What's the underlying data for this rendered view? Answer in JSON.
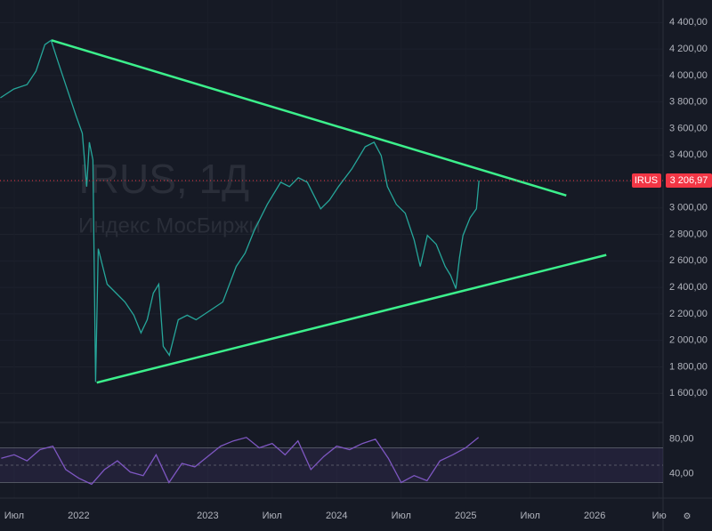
{
  "chart_data": [
    {
      "type": "line",
      "title": "IRUS, 1Д",
      "subtitle": "Индекс МосБиржи",
      "x": [
        2021.393,
        2021.497,
        2021.6,
        2021.669,
        2021.738,
        2021.786,
        2021.841,
        2021.91,
        2021.979,
        2022.028,
        2022.062,
        2022.083,
        2022.11,
        2022.131,
        2022.152,
        2022.221,
        2022.29,
        2022.359,
        2022.428,
        2022.483,
        2022.531,
        2022.579,
        2022.621,
        2022.655,
        2022.703,
        2022.772,
        2022.841,
        2022.91,
        2023.014,
        2023.117,
        2023.221,
        2023.29,
        2023.359,
        2023.462,
        2023.566,
        2023.634,
        2023.703,
        2023.772,
        2023.876,
        2023.945,
        2024.014,
        2024.117,
        2024.221,
        2024.29,
        2024.345,
        2024.393,
        2024.462,
        2024.531,
        2024.6,
        2024.648,
        2024.703,
        2024.772,
        2024.841,
        2024.883,
        2024.924,
        2024.952,
        2024.979,
        2025.034,
        2025.083,
        2025.103
      ],
      "series": [
        {
          "name": "IRUS",
          "color": "#26a69a",
          "values": [
            3831,
            3898,
            3931,
            4032,
            4233,
            4266,
            4099,
            3898,
            3697,
            3563,
            3161,
            3496,
            3362,
            1687,
            2692,
            2424,
            2357,
            2290,
            2190,
            2056,
            2156,
            2357,
            2424,
            1955,
            1888,
            2156,
            2190,
            2156,
            2223,
            2290,
            2558,
            2659,
            2826,
            3027,
            3194,
            3161,
            3228,
            3194,
            2993,
            3060,
            3161,
            3295,
            3462,
            3496,
            3395,
            3161,
            3027,
            2960,
            2759,
            2558,
            2792,
            2725,
            2558,
            2491,
            2391,
            2625,
            2792,
            2926,
            2993,
            3206.97
          ],
          "value_labels": [
            null,
            null,
            null,
            null,
            null,
            null,
            null,
            null,
            null,
            null,
            null,
            null,
            null,
            null,
            null,
            null,
            null,
            null,
            null,
            null,
            null,
            null,
            null,
            null,
            null,
            null,
            null,
            null,
            null,
            null,
            null,
            null,
            null,
            null,
            null,
            null,
            null,
            null,
            null,
            null,
            null,
            null,
            null,
            null,
            null,
            null,
            null,
            null,
            null,
            null,
            null,
            null,
            null,
            null,
            null,
            null,
            null,
            null,
            null,
            "3 206,97"
          ]
        }
      ],
      "trendlines": [
        {
          "color": "#3cf08c",
          "x": [
            2021.79,
            2025.78
          ],
          "values": [
            4266,
            3094
          ]
        },
        {
          "color": "#3cf08c",
          "x": [
            2022.14,
            2026.09
          ],
          "values": [
            1681,
            2645
          ]
        }
      ],
      "xlim": [
        2021.39,
        2026.53
      ],
      "xticks": [
        {
          "value": 2021.5,
          "label": "Июл"
        },
        2022,
        2023,
        {
          "value": 2023.5,
          "label": "Июл"
        },
        2024,
        {
          "value": 2024.5,
          "label": "Июл"
        },
        2025,
        {
          "value": 2025.5,
          "label": "Июл"
        },
        2026,
        {
          "value": 2026.5,
          "label": "Ию"
        }
      ],
      "ylim": [
        1380,
        4570
      ],
      "yticks": [
        {
          "value": 1600,
          "label": "1 600,00"
        },
        {
          "value": 1800,
          "label": "1 800,00"
        },
        {
          "value": 2000,
          "label": "2 000,00"
        },
        {
          "value": 2200,
          "label": "2 200,00"
        },
        {
          "value": 2400,
          "label": "2 400,00"
        },
        {
          "value": 2600,
          "label": "2 600,00"
        },
        {
          "value": 2800,
          "label": "2 800,00"
        },
        {
          "value": 3000,
          "label": "3 000,00"
        },
        {
          "value": 3200,
          "label": "3 200,00"
        },
        {
          "value": 3400,
          "label": "3 400,00"
        },
        {
          "value": 3600,
          "label": "3 600,00"
        },
        {
          "value": 3800,
          "label": "3 800,00"
        },
        {
          "value": 4000,
          "label": "4 000,00"
        },
        {
          "value": 4200,
          "label": "4 200,00"
        },
        {
          "value": 4400,
          "label": "4 400,00"
        }
      ],
      "grid": true
    },
    {
      "type": "line",
      "x": [
        2021.4,
        2021.5,
        2021.6,
        2021.7,
        2021.8,
        2021.9,
        2022.0,
        2022.1,
        2022.2,
        2022.3,
        2022.4,
        2022.5,
        2022.6,
        2022.7,
        2022.8,
        2022.9,
        2023.0,
        2023.1,
        2023.2,
        2023.3,
        2023.4,
        2023.5,
        2023.6,
        2023.7,
        2023.8,
        2023.9,
        2024.0,
        2024.1,
        2024.2,
        2024.3,
        2024.4,
        2024.5,
        2024.6,
        2024.7,
        2024.8,
        2024.9,
        2025.0,
        2025.1
      ],
      "series": [
        {
          "color": "#7e57c2",
          "values": [
            58,
            62,
            55,
            68,
            72,
            45,
            35,
            28,
            45,
            55,
            42,
            38,
            62,
            30,
            52,
            48,
            60,
            72,
            78,
            82,
            70,
            75,
            62,
            78,
            45,
            60,
            72,
            68,
            75,
            80,
            58,
            30,
            38,
            32,
            55,
            62,
            70,
            82
          ]
        }
      ],
      "levels": [
        30,
        50,
        70
      ],
      "ylim": [
        12,
        89
      ],
      "yticks": [
        {
          "value": 80,
          "label": "80,00"
        },
        {
          "value": 40,
          "label": "40,00"
        }
      ]
    }
  ]
}
